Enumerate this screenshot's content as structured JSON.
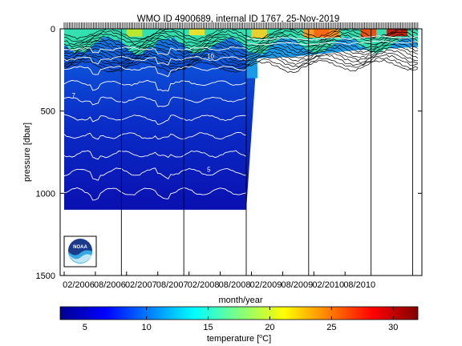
{
  "chart_data": {
    "type": "heatmap",
    "title": "WMO ID 4900689, internal ID 1767, 25-Nov-2019",
    "xlabel": "month/year",
    "ylabel": "pressure [dbar]",
    "y_ticks": [
      0,
      500,
      1000,
      1500
    ],
    "ylim": [
      0,
      1500
    ],
    "y_reversed": true,
    "x_ticks": [
      "02/2006",
      "08/2006",
      "02/2007",
      "08/2007",
      "02/2008",
      "08/2008",
      "02/2009",
      "08/2009",
      "02/2010",
      "08/2010"
    ],
    "x_range_months": [
      0,
      68
    ],
    "tick_month_index": [
      0,
      6,
      12,
      18,
      24,
      30,
      36,
      42,
      48,
      54
    ],
    "year_boundary_month_index": [
      11,
      23,
      35,
      47,
      59,
      67
    ],
    "deep_profile_last_month": 35,
    "deep_profile_max_pressure": 1100,
    "shallow_profile_max_pressure": 300,
    "contour_labels": [
      {
        "text": "10",
        "month": 29,
        "pressure": 180
      },
      {
        "text": "5",
        "month": 29,
        "pressure": 870
      },
      {
        "text": "7",
        "month": 3,
        "pressure": 420
      }
    ],
    "colorbar": {
      "label_prefix": "temperature [",
      "label_unit_sup": "o",
      "label_suffix": "C]",
      "range": [
        3,
        32
      ],
      "ticks": [
        5,
        10,
        15,
        20,
        25,
        30
      ]
    },
    "logo_text": "NOAA"
  }
}
